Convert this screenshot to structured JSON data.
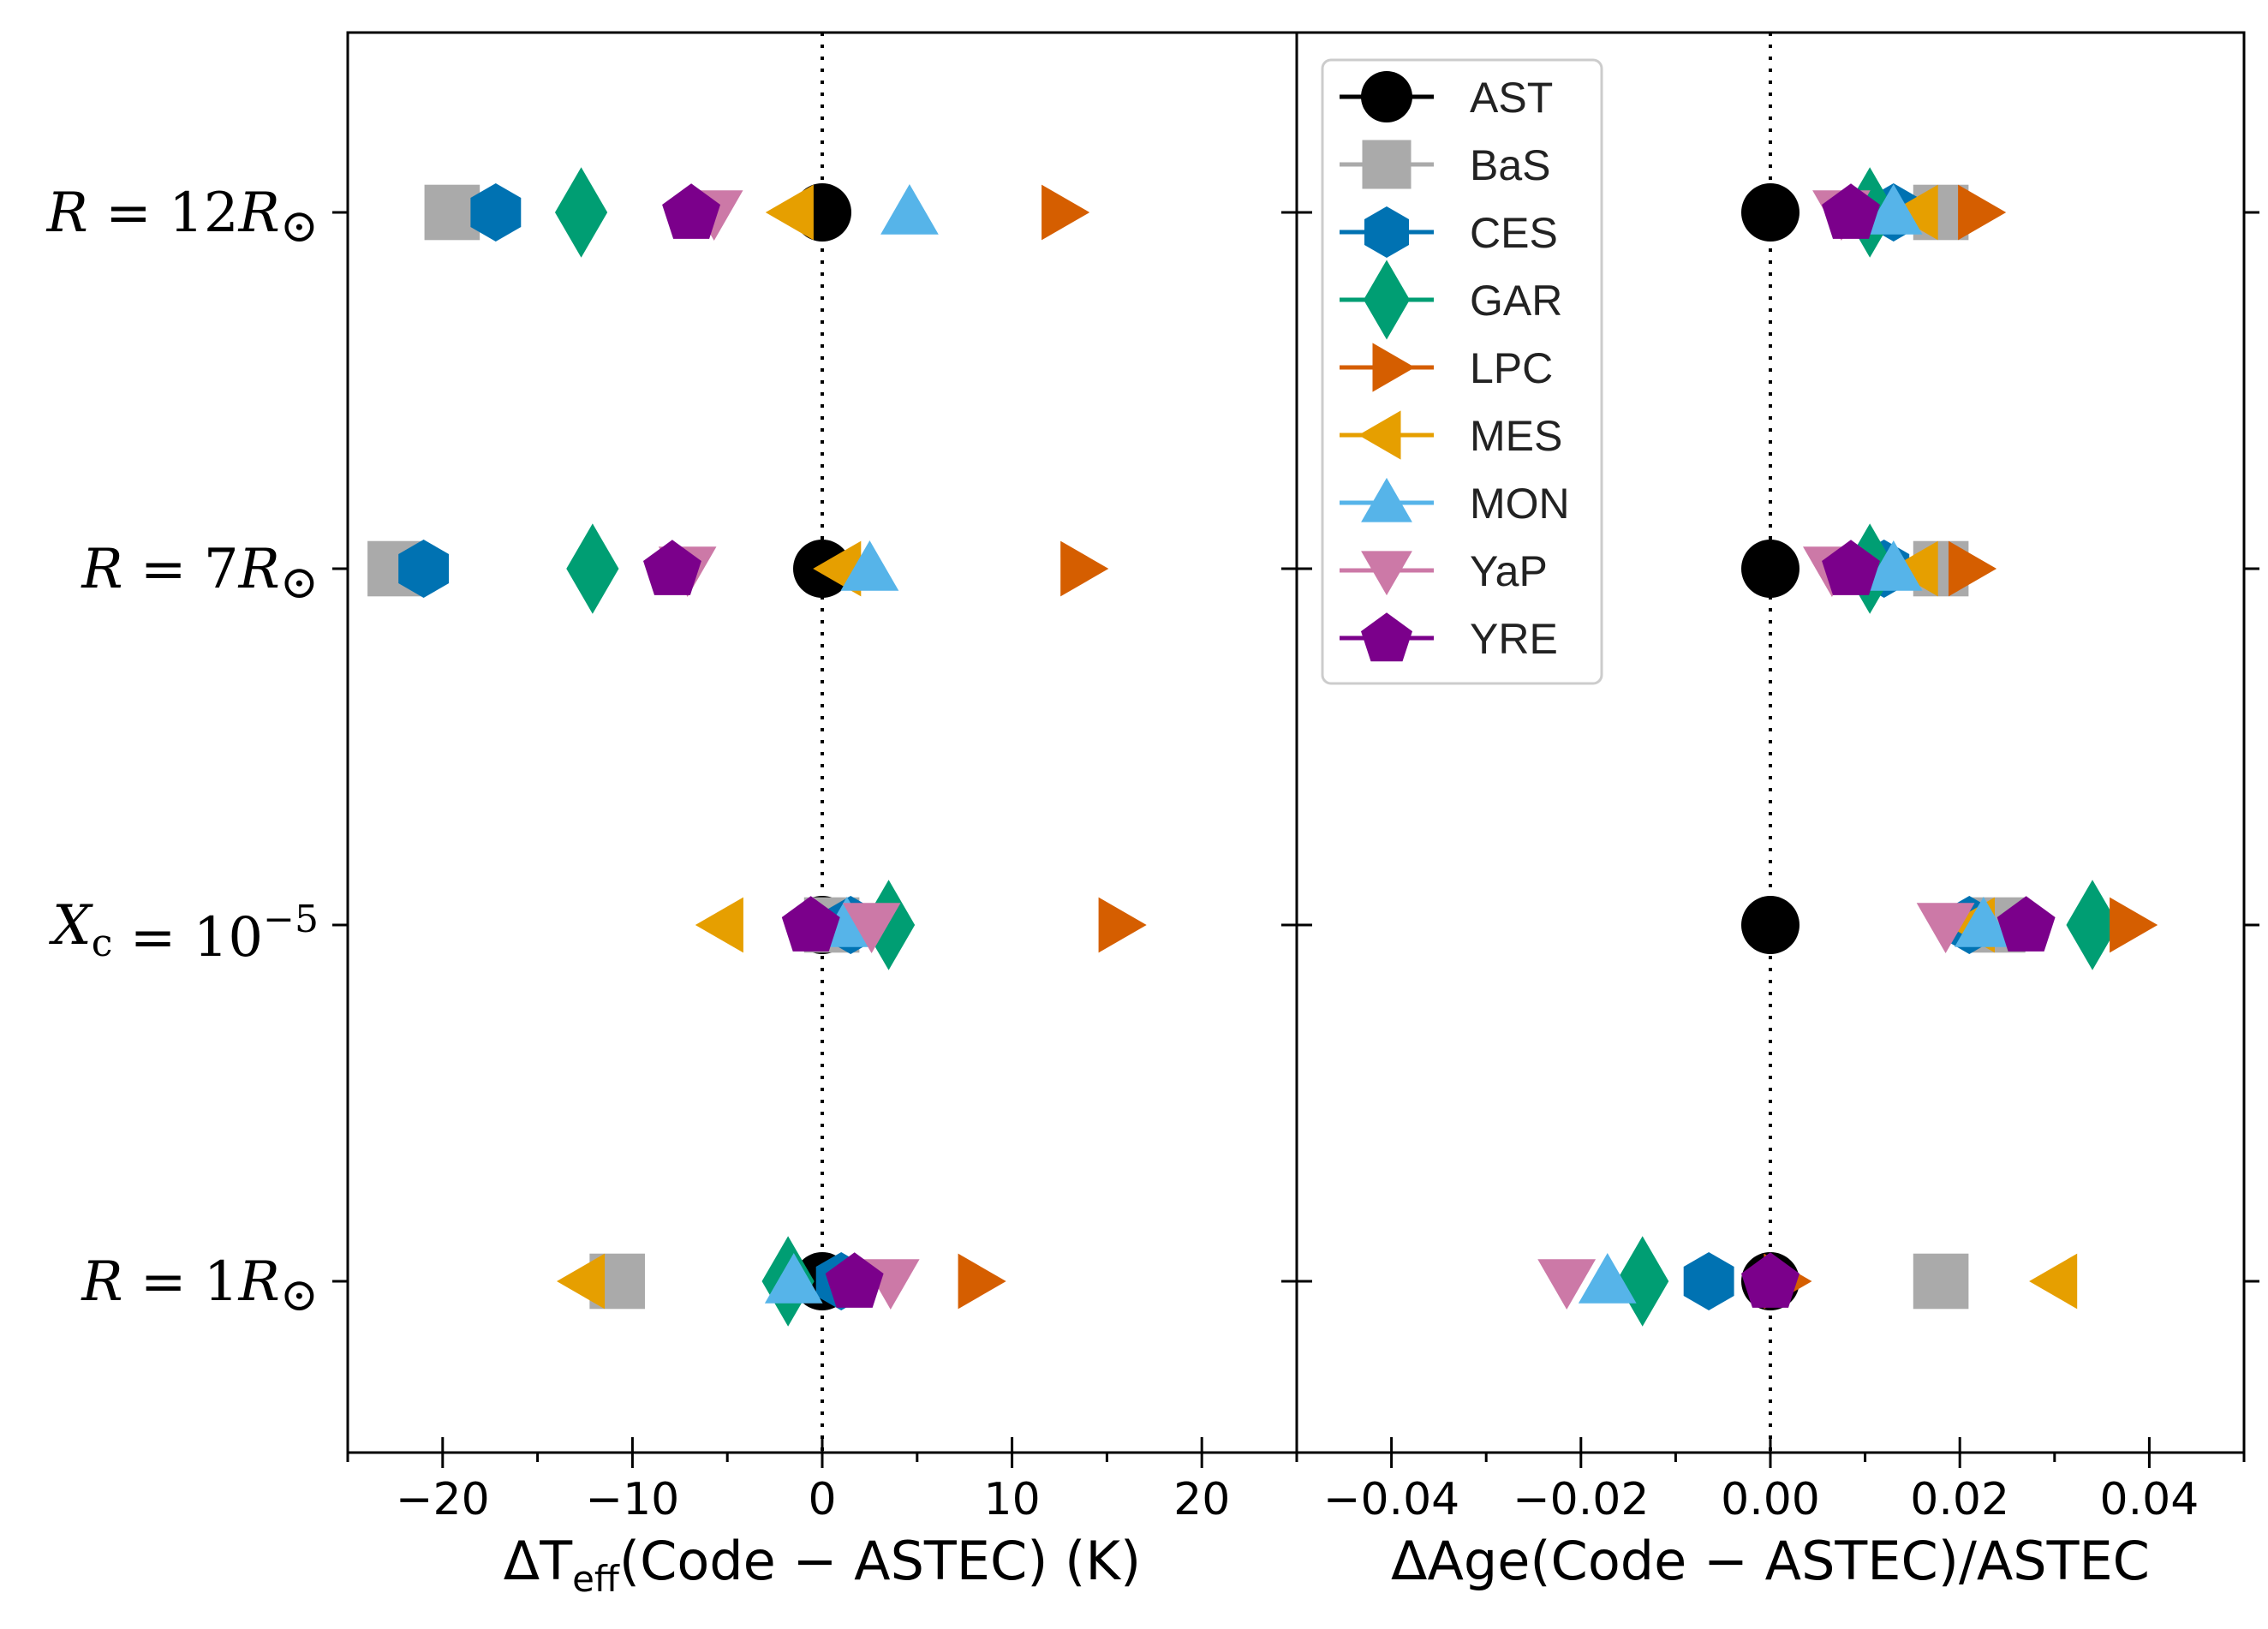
{
  "chart_data": {
    "type": "scatter",
    "categories": [
      {
        "var": "R",
        "eq": " = 12",
        "sub": "",
        "sup": "",
        "unit": "R",
        "sun": "⊙"
      },
      {
        "var": "R",
        "eq": " = 7",
        "sub": "",
        "sup": "",
        "unit": "R",
        "sun": "⊙"
      },
      {
        "var": "X",
        "eq": " = 10",
        "sub": "c",
        "sup": "−5",
        "unit": "",
        "sun": ""
      },
      {
        "var": "R",
        "eq": " = 1",
        "sub": "",
        "sup": "",
        "unit": "R",
        "sun": "⊙"
      }
    ],
    "legend": {
      "placement": "upper-left of right panel"
    },
    "series": [
      {
        "name": "AST",
        "marker": "circle",
        "color": "#000000"
      },
      {
        "name": "BaS",
        "marker": "square",
        "color": "#aaaaaa"
      },
      {
        "name": "CES",
        "marker": "hexagon",
        "color": "#0072b2"
      },
      {
        "name": "GAR",
        "marker": "diamond",
        "color": "#009e73"
      },
      {
        "name": "LPC",
        "marker": "triangle-right",
        "color": "#d55e00"
      },
      {
        "name": "MES",
        "marker": "triangle-left",
        "color": "#e69f00"
      },
      {
        "name": "MON",
        "marker": "triangle-up",
        "color": "#56b4e9"
      },
      {
        "name": "YaP",
        "marker": "triangle-down",
        "color": "#cc79a7"
      },
      {
        "name": "YRE",
        "marker": "pentagon",
        "color": "#7b008b"
      }
    ],
    "panels": [
      {
        "id": "teff",
        "xlabel_prefix": "ΔT",
        "xlabel_sub": "eff",
        "xlabel_suffix": "(Code − ASTEC) (K)",
        "xlim": [
          -25,
          25
        ],
        "xticks": [
          -20,
          -10,
          0,
          10,
          20
        ],
        "xtick_labels": [
          "−20",
          "−10",
          "0",
          "10",
          "20"
        ],
        "xminor": [
          -25,
          -15,
          -5,
          5,
          15,
          25
        ],
        "values": {
          "AST": [
            0,
            0,
            0,
            0
          ],
          "BaS": [
            -19.5,
            -22.5,
            0.5,
            -10.8
          ],
          "CES": [
            -17.2,
            -21,
            1.5,
            1
          ],
          "GAR": [
            -12.7,
            -12.1,
            3.5,
            -1.8
          ],
          "LPC": [
            12.4,
            13.4,
            15.4,
            8
          ],
          "MES": [
            -1.3,
            1.2,
            -5,
            -12.3
          ],
          "MON": [
            4.6,
            2.5,
            1.3,
            -1.5
          ],
          "YaP": [
            -5.7,
            -7.1,
            2.6,
            3.6
          ],
          "YRE": [
            -6.9,
            -7.9,
            -0.6,
            1.7
          ]
        }
      },
      {
        "id": "age",
        "xlabel_prefix": "ΔAge(Code − ASTEC)/ASTEC",
        "xlabel_sub": "",
        "xlabel_suffix": "",
        "xlim": [
          -0.05,
          0.05
        ],
        "xticks": [
          -0.04,
          -0.02,
          0.0,
          0.02,
          0.04
        ],
        "xtick_labels": [
          "−0.04",
          "−0.02",
          "0.00",
          "0.02",
          "0.04"
        ],
        "xminor": [
          -0.05,
          -0.03,
          -0.01,
          0.01,
          0.03,
          0.05
        ],
        "values": {
          "AST": [
            0,
            0,
            0,
            0
          ],
          "BaS": [
            0.018,
            0.018,
            0.024,
            0.018
          ],
          "CES": [
            0.013,
            0.012,
            0.021,
            -0.0065
          ],
          "GAR": [
            0.0105,
            0.0105,
            0.034,
            -0.0135
          ],
          "LPC": [
            0.0215,
            0.0205,
            0.0375,
            0.001
          ],
          "MES": [
            0.016,
            0.016,
            0.022,
            0.0307
          ],
          "MON": [
            0.013,
            0.013,
            0.0225,
            -0.0172
          ],
          "YaP": [
            0.0075,
            0.0065,
            0.0185,
            -0.0215
          ],
          "YRE": [
            0.0085,
            0.0085,
            0.027,
            0.0
          ]
        }
      }
    ]
  }
}
